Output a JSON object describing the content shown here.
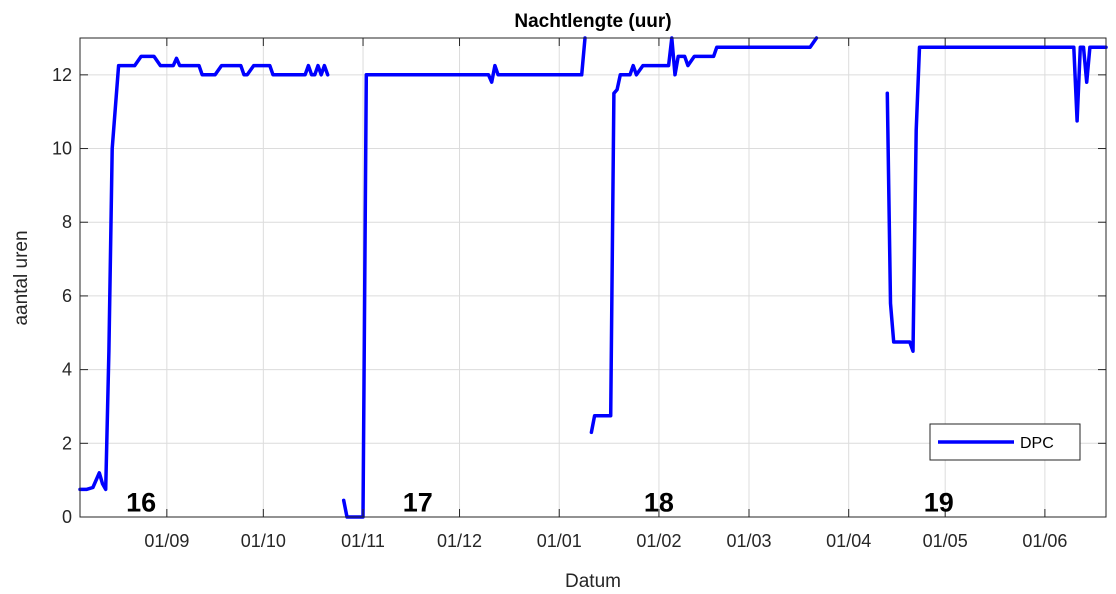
{
  "chart_data": {
    "type": "line",
    "title": "Nachtlengte (uur)",
    "xlabel": "Datum",
    "ylabel": "aantal uren",
    "x_unit": "date",
    "xlim": [
      "2018-08-05",
      "2019-06-20"
    ],
    "ylim": [
      0,
      13
    ],
    "yticks": [
      0,
      2,
      4,
      6,
      8,
      10,
      12
    ],
    "xticks": [
      {
        "date": "2018-09-01",
        "label": "01/09"
      },
      {
        "date": "2018-10-01",
        "label": "01/10"
      },
      {
        "date": "2018-11-01",
        "label": "01/11"
      },
      {
        "date": "2018-12-01",
        "label": "01/12"
      },
      {
        "date": "2019-01-01",
        "label": "01/01"
      },
      {
        "date": "2019-02-01",
        "label": "01/02"
      },
      {
        "date": "2019-03-01",
        "label": "01/03"
      },
      {
        "date": "2019-04-01",
        "label": "01/04"
      },
      {
        "date": "2019-05-01",
        "label": "01/05"
      },
      {
        "date": "2019-06-01",
        "label": "01/06"
      }
    ],
    "grid": true,
    "legend": "bottom-right",
    "annotations": [
      {
        "text": "16",
        "date": "2018-08-24",
        "y": 0.15
      },
      {
        "text": "17",
        "date": "2018-11-18",
        "y": 0.15
      },
      {
        "text": "18",
        "date": "2019-02-01",
        "y": 0.15
      },
      {
        "text": "19",
        "date": "2019-04-29",
        "y": 0.15
      }
    ],
    "series": [
      {
        "name": "DPC",
        "color": "#0000ff",
        "segments": [
          [
            [
              "2018-08-05",
              0.75
            ],
            [
              "2018-08-07",
              0.75
            ],
            [
              "2018-08-09",
              0.8
            ],
            [
              "2018-08-11",
              1.2
            ],
            [
              "2018-08-12",
              0.9
            ],
            [
              "2018-08-13",
              0.75
            ],
            [
              "2018-08-14",
              4.5
            ],
            [
              "2018-08-15",
              10.0
            ],
            [
              "2018-08-17",
              12.25
            ],
            [
              "2018-08-22",
              12.25
            ],
            [
              "2018-08-24",
              12.5
            ],
            [
              "2018-08-28",
              12.5
            ],
            [
              "2018-08-30",
              12.25
            ],
            [
              "2018-09-03",
              12.25
            ],
            [
              "2018-09-04",
              12.45
            ],
            [
              "2018-09-05",
              12.25
            ],
            [
              "2018-09-11",
              12.25
            ],
            [
              "2018-09-12",
              12.0
            ],
            [
              "2018-09-16",
              12.0
            ],
            [
              "2018-09-18",
              12.25
            ],
            [
              "2018-09-24",
              12.25
            ],
            [
              "2018-09-25",
              12.0
            ],
            [
              "2018-09-26",
              12.0
            ],
            [
              "2018-09-28",
              12.25
            ],
            [
              "2018-10-03",
              12.25
            ],
            [
              "2018-10-04",
              12.0
            ],
            [
              "2018-10-14",
              12.0
            ],
            [
              "2018-10-15",
              12.25
            ],
            [
              "2018-10-16",
              12.0
            ],
            [
              "2018-10-17",
              12.0
            ],
            [
              "2018-10-18",
              12.25
            ],
            [
              "2018-10-19",
              12.0
            ],
            [
              "2018-10-20",
              12.25
            ],
            [
              "2018-10-21",
              12.0
            ]
          ],
          [
            [
              "2018-10-26",
              0.45
            ],
            [
              "2018-10-27",
              0.0
            ],
            [
              "2018-11-01",
              0.0
            ],
            [
              "2018-11-02",
              12.0
            ],
            [
              "2018-12-10",
              12.0
            ],
            [
              "2018-12-11",
              11.8
            ],
            [
              "2018-12-12",
              12.25
            ],
            [
              "2018-12-13",
              12.0
            ],
            [
              "2019-01-08",
              12.0
            ],
            [
              "2019-01-09",
              13.0
            ]
          ],
          [
            [
              "2019-01-11",
              2.3
            ],
            [
              "2019-01-12",
              2.75
            ],
            [
              "2019-01-17",
              2.75
            ],
            [
              "2019-01-18",
              11.5
            ],
            [
              "2019-01-19",
              11.6
            ],
            [
              "2019-01-20",
              12.0
            ],
            [
              "2019-01-23",
              12.0
            ],
            [
              "2019-01-24",
              12.25
            ],
            [
              "2019-01-25",
              12.0
            ],
            [
              "2019-01-27",
              12.25
            ],
            [
              "2019-02-04",
              12.25
            ],
            [
              "2019-02-05",
              13.0
            ],
            [
              "2019-02-06",
              12.0
            ],
            [
              "2019-02-07",
              12.5
            ],
            [
              "2019-02-09",
              12.5
            ],
            [
              "2019-02-10",
              12.25
            ],
            [
              "2019-02-12",
              12.5
            ],
            [
              "2019-02-18",
              12.5
            ],
            [
              "2019-02-19",
              12.75
            ],
            [
              "2019-03-20",
              12.75
            ],
            [
              "2019-03-22",
              13.0
            ]
          ],
          [
            [
              "2019-04-13",
              11.5
            ],
            [
              "2019-04-14",
              5.8
            ],
            [
              "2019-04-15",
              4.75
            ],
            [
              "2019-04-20",
              4.75
            ],
            [
              "2019-04-21",
              4.5
            ],
            [
              "2019-04-22",
              10.5
            ],
            [
              "2019-04-23",
              12.75
            ],
            [
              "2019-06-10",
              12.75
            ],
            [
              "2019-06-11",
              10.75
            ],
            [
              "2019-06-12",
              12.75
            ],
            [
              "2019-06-13",
              12.75
            ],
            [
              "2019-06-14",
              11.8
            ],
            [
              "2019-06-15",
              12.75
            ],
            [
              "2019-06-20",
              12.75
            ]
          ]
        ]
      }
    ]
  }
}
